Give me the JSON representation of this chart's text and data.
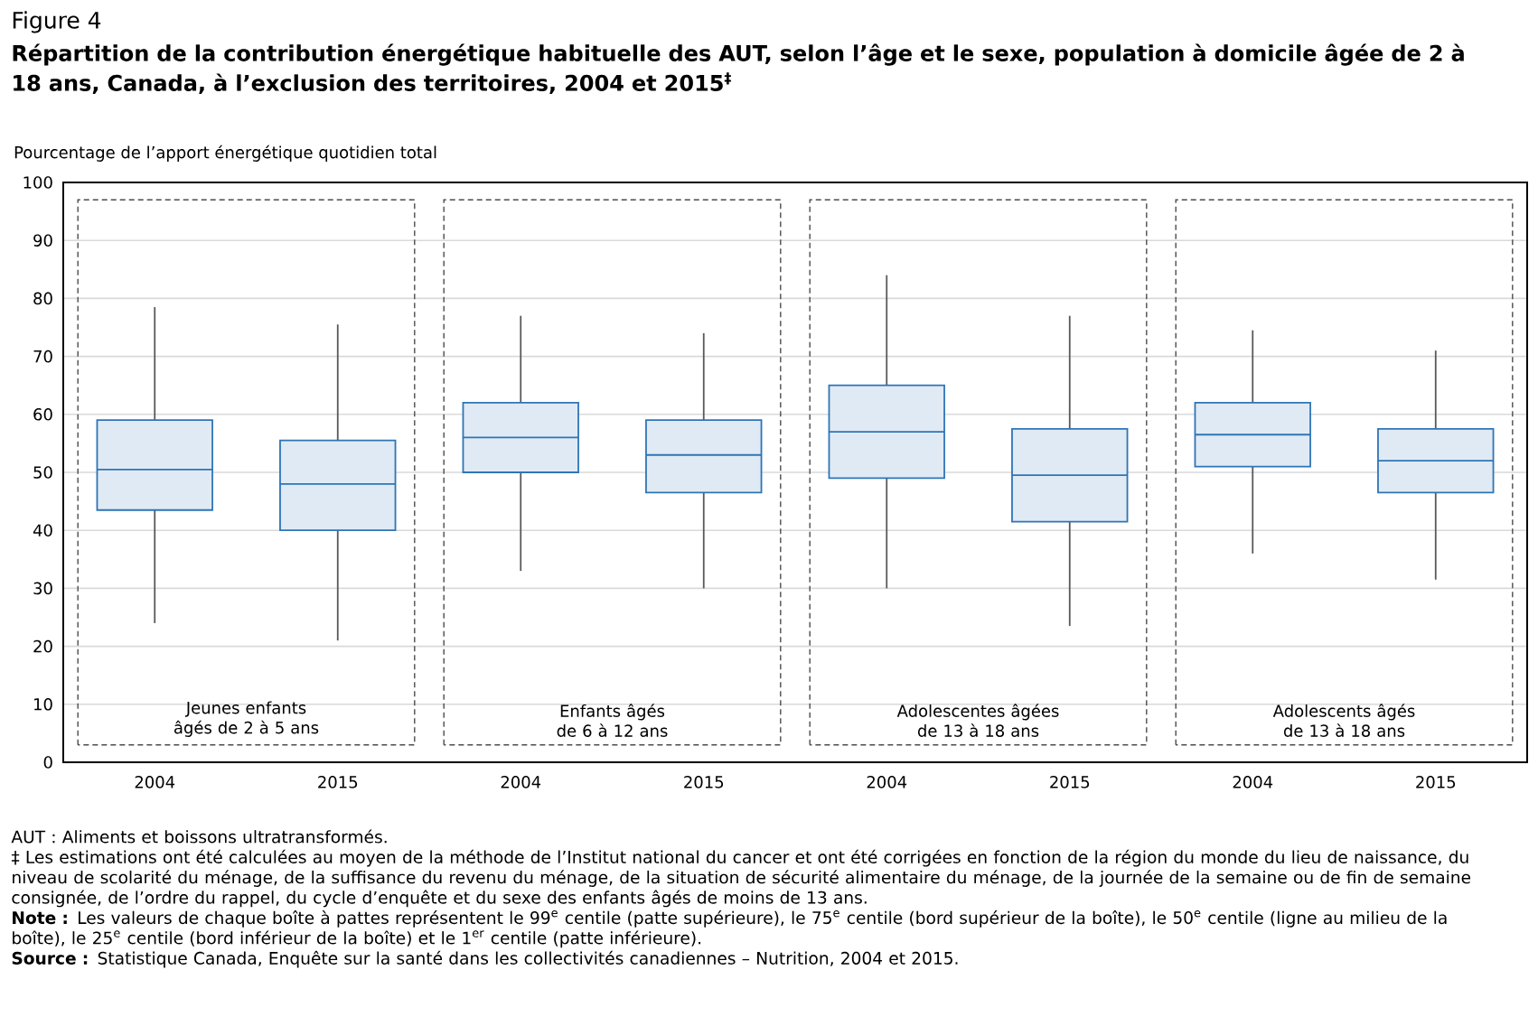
{
  "chart_data": {
    "type": "box",
    "title": "Figure 4",
    "subtitle": "Répartition de la contribution énergétique habituelle des AUT, selon l’âge et le sexe, population à domicile âgée de 2 à 18 ans, Canada, à l’exclusion des territoires, 2004 et 2015$^{‡}$",
    "ylabel": "Pourcentage de l’apport énergétique quotidien total",
    "categories": [
      "2004",
      "2015",
      "2004",
      "2015",
      "2004",
      "2015",
      "2004",
      "2015"
    ],
    "color": "#2e75b6",
    "boxes": [
      {
        "low": 24,
        "q1": 43.5,
        "median": 50.5,
        "q3": 59,
        "high": 78.5
      },
      {
        "low": 21,
        "q1": 40,
        "median": 48,
        "q3": 55.5,
        "high": 75.5
      },
      {
        "low": 33,
        "q1": 50,
        "median": 56,
        "q3": 62,
        "high": 77
      },
      {
        "low": 30,
        "q1": 46.5,
        "median": 53,
        "q3": 59,
        "high": 74
      },
      {
        "low": 30,
        "q1": 49,
        "median": 57,
        "q3": 65,
        "high": 84
      },
      {
        "low": 23.5,
        "q1": 41.5,
        "median": 49.5,
        "q3": 57.5,
        "high": 77
      },
      {
        "low": 36,
        "q1": 51,
        "median": 56.5,
        "q3": 62,
        "high": 74.5
      },
      {
        "low": 31.5,
        "q1": 46.5,
        "median": 52,
        "q3": 57.5,
        "high": 71
      }
    ],
    "ylim": [
      0,
      100
    ],
    "yticks": [
      0,
      10,
      20,
      30,
      40,
      50,
      60,
      70,
      80,
      90,
      100
    ],
    "grid": "y",
    "annotations": [
      "Jeunes enfants âgés de 2 à 5 ans",
      "Enfants âgés de 6 à 12 ans",
      "Adolescentes âgées de 13 à 18 ans",
      "Adolescents âgés de 13 à 18 ans",
      "AUT : Aliments et boissons ultratransformés.",
      "‡ Les estimations ont été calculées au moyen de la méthode de l’Institut national du cancer et ont été corrigées en fonction de la région du monde du lieu de naissance, du niveau de scolarité du ménage, de la suffisance du revenu du ménage, de la situation de sécurité alimentaire du ménage, de la journée de la semaine ou de fin de semaine consignée, de l’ordre du rappel, du cycle d’enquête et du sexe des enfants âgés de moins de 13 ans.",
      "**Note :** Les valeurs de chaque boîte à pattes représentent le 99$^{e}$ centile (patte supérieure), le 75$^{e}$ centile (bord supérieur de la boîte), le 50$^{e}$ centile (ligne au milieu de la boîte), le 25$^{e}$ centile (bord inférieur de la boîte) et le 1$^{er}$ centile (patte inférieure).",
      "**Source :** Statistique Canada, Enquête sur la santé dans les collectivités canadiennes – Nutrition, 2004 et 2015."
    ]
  }
}
